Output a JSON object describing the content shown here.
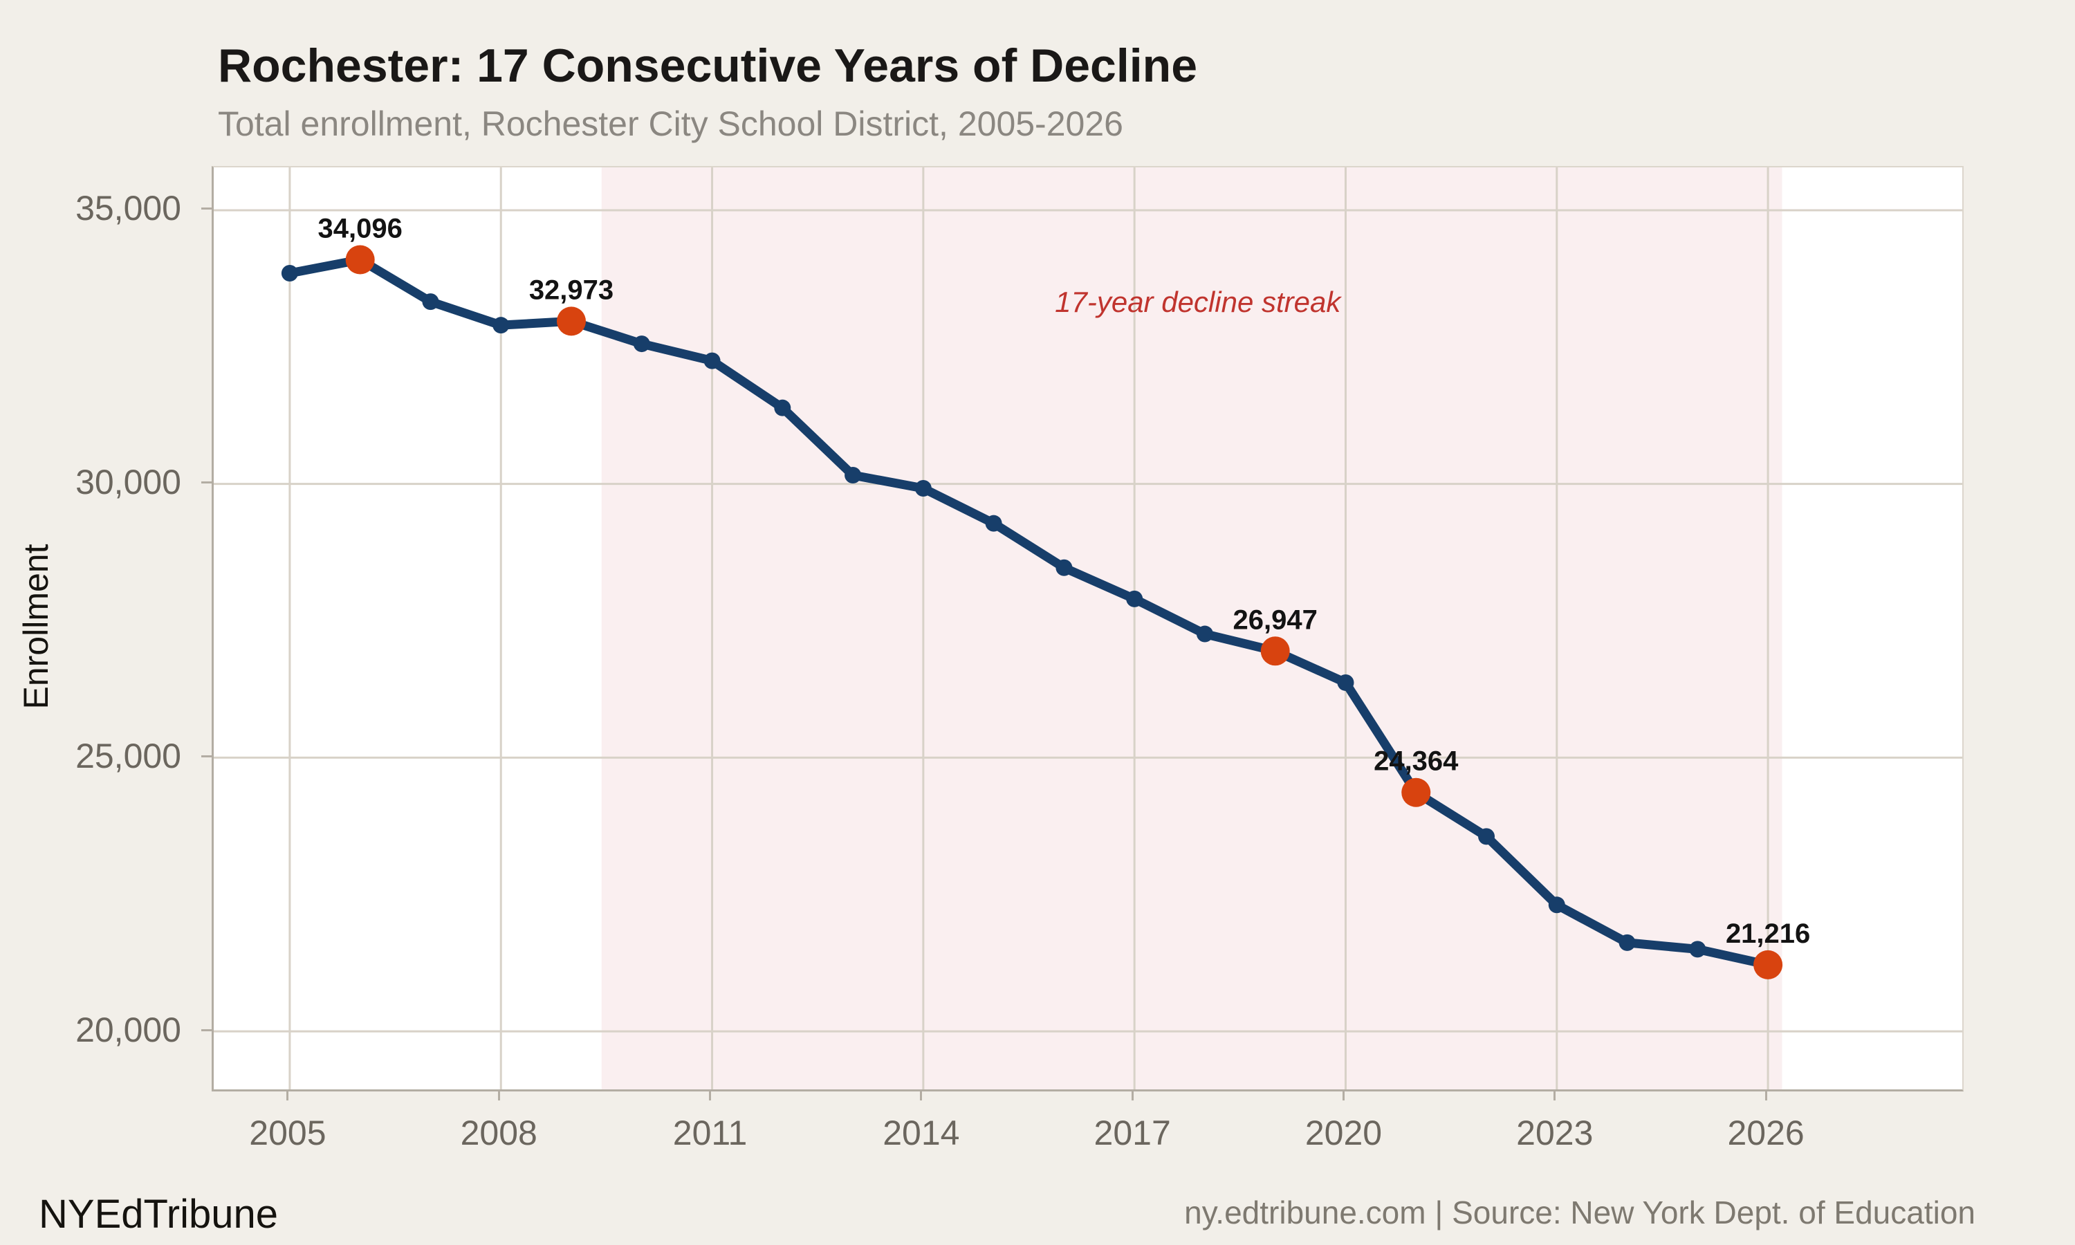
{
  "header": {
    "title": "Rochester: 17 Consecutive Years of Decline",
    "subtitle": "Total enrollment, Rochester City School District, 2005-2026"
  },
  "footer": {
    "brand": "NYEdTribune",
    "source": "ny.edtribune.com | Source: New York Dept. of Education"
  },
  "colors": {
    "page_bg": "#f2efe9",
    "plot_bg": "#ffffff",
    "band": "#faeff0",
    "grid": "#d8d2c8",
    "axis_line": "#b3ada3",
    "tick_text": "#6b665e",
    "line": "#173e6a",
    "highlight": "#d8430f",
    "annotation_red": "#c0342e",
    "point_label": "#131313"
  },
  "chart_data": {
    "type": "line",
    "title": "Rochester: 17 Consecutive Years of Decline",
    "subtitle": "Total enrollment, Rochester City School District, 2005-2026",
    "xlabel": "",
    "ylabel": "Enrollment",
    "x": [
      2005,
      2006,
      2007,
      2008,
      2009,
      2010,
      2011,
      2012,
      2013,
      2014,
      2015,
      2016,
      2017,
      2018,
      2019,
      2020,
      2021,
      2022,
      2023,
      2024,
      2025,
      2026
    ],
    "values": [
      33850,
      34096,
      33330,
      32900,
      32973,
      32560,
      32250,
      31390,
      30160,
      29920,
      29280,
      28470,
      27900,
      27260,
      26947,
      26370,
      24364,
      23560,
      22310,
      21620,
      21500,
      21216
    ],
    "highlight_years": [
      2006,
      2009,
      2019,
      2021,
      2026
    ],
    "labeled_points": [
      {
        "x": 2006,
        "y": 34096,
        "label": "34,096"
      },
      {
        "x": 2009,
        "y": 32973,
        "label": "32,973"
      },
      {
        "x": 2019,
        "y": 26947,
        "label": "26,947"
      },
      {
        "x": 2021,
        "y": 24364,
        "label": "24,364"
      },
      {
        "x": 2026,
        "y": 21216,
        "label": "21,216"
      }
    ],
    "x_ticks": [
      {
        "v": 2005,
        "label": "2005"
      },
      {
        "v": 2008,
        "label": "2008"
      },
      {
        "v": 2011,
        "label": "2011"
      },
      {
        "v": 2014,
        "label": "2014"
      },
      {
        "v": 2017,
        "label": "2017"
      },
      {
        "v": 2020,
        "label": "2020"
      },
      {
        "v": 2023,
        "label": "2023"
      },
      {
        "v": 2026,
        "label": "2026"
      }
    ],
    "y_ticks": [
      {
        "v": 20000,
        "label": "20,000"
      },
      {
        "v": 25000,
        "label": "25,000"
      },
      {
        "v": 30000,
        "label": "30,000"
      },
      {
        "v": 35000,
        "label": "35,000"
      }
    ],
    "xlim": [
      2003.92,
      2028.76
    ],
    "ylim": [
      18940,
      35783
    ],
    "grid": true,
    "legend": "none",
    "band": {
      "x0": 2009.43,
      "x1": 2026.2,
      "label": "17-year decline streak",
      "label_x": 2017.9,
      "label_y": 33280
    }
  }
}
